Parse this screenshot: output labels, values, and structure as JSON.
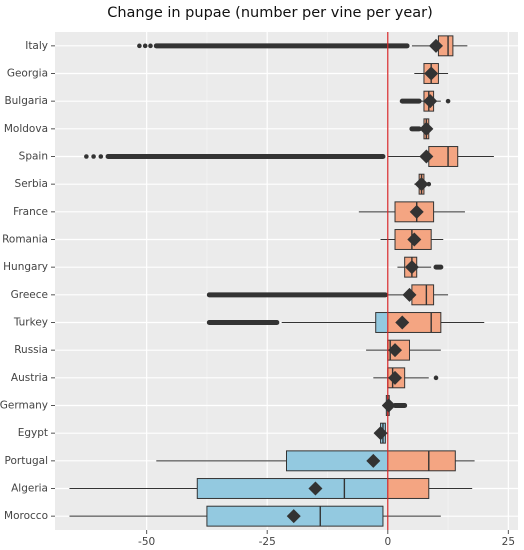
{
  "chart_data": {
    "type": "boxplot",
    "title": "Change in pupae (number per vine per year)",
    "categories": [
      "Italy",
      "Georgia",
      "Bulgaria",
      "Moldova",
      "Spain",
      "Serbia",
      "France",
      "Romania",
      "Hungary",
      "Greece",
      "Turkey",
      "Russia",
      "Austria",
      "Germany",
      "Egypt",
      "Portugal",
      "Algeria",
      "Morocco"
    ],
    "boxes": [
      {
        "whislo": 5,
        "q1": 10.5,
        "med": 12.5,
        "q3": 13.5,
        "whishi": 16.5,
        "mean": 10,
        "outlier_band": [
          -48,
          4
        ],
        "outliers": [
          -51.5,
          -50.3,
          -49.2
        ]
      },
      {
        "whislo": 5.5,
        "q1": 7.5,
        "med": 9,
        "q3": 10.5,
        "whishi": 12.5,
        "mean": 9
      },
      {
        "whislo": 6,
        "q1": 7.5,
        "med": 8.5,
        "q3": 9.5,
        "whishi": 11,
        "mean": 8.8,
        "outlier_band": [
          3,
          6.5
        ],
        "outliers": [
          12.5
        ]
      },
      {
        "whislo": 6.5,
        "q1": 7.5,
        "med": 8,
        "q3": 8.5,
        "whishi": 9,
        "mean": 8,
        "outlier_band": [
          5,
          6.5
        ]
      },
      {
        "whislo": 0,
        "q1": 8.5,
        "med": 12.5,
        "q3": 14.5,
        "whishi": 22,
        "mean": 8,
        "outlier_band": [
          -58,
          -1
        ],
        "outliers": [
          -62.5,
          -61,
          -59.5
        ]
      },
      {
        "whislo": 5.5,
        "q1": 6.5,
        "med": 7,
        "q3": 7.5,
        "whishi": 8,
        "mean": 7,
        "outliers": [
          8.5
        ]
      },
      {
        "whislo": -6,
        "q1": 1.5,
        "med": 6,
        "q3": 9.5,
        "whishi": 16,
        "mean": 6
      },
      {
        "whislo": -1.5,
        "q1": 1.5,
        "med": 5,
        "q3": 9,
        "whishi": 11.5,
        "mean": 5.5
      },
      {
        "whislo": 2,
        "q1": 3.5,
        "med": 5,
        "q3": 6,
        "whishi": 9,
        "mean": 5,
        "outlier_band": [
          10,
          11
        ]
      },
      {
        "whislo": 0,
        "q1": 5,
        "med": 8,
        "q3": 9.5,
        "whishi": 12.5,
        "mean": 4.5,
        "outlier_band": [
          -37,
          -0.5
        ]
      },
      {
        "whislo": -22,
        "q1": -2.5,
        "med": 9,
        "q3": 11,
        "whishi": 20,
        "mean": 3,
        "outlier_band": [
          -37,
          -23
        ]
      },
      {
        "whislo": -4.5,
        "q1": 0,
        "med": 0.5,
        "q3": 4.5,
        "whishi": 11,
        "mean": 1.5
      },
      {
        "whislo": -3,
        "q1": 0,
        "med": 1,
        "q3": 3.5,
        "whishi": 8.5,
        "mean": 1.5,
        "outliers": [
          10
        ]
      },
      {
        "whislo": -1,
        "q1": -0.3,
        "med": 0,
        "q3": 0.3,
        "whishi": 1,
        "mean": 0.2,
        "outlier_band": [
          1.5,
          3.5
        ]
      },
      {
        "whislo": -2.5,
        "q1": -1.5,
        "med": -1,
        "q3": -0.5,
        "whishi": 0,
        "mean": -1.5
      },
      {
        "whislo": -48,
        "q1": -21,
        "med": 8.5,
        "q3": 14,
        "whishi": 18,
        "mean": -3
      },
      {
        "whislo": -66,
        "q1": -39.5,
        "med": -9,
        "q3": 8.5,
        "whishi": 17.5,
        "mean": -15
      },
      {
        "whislo": -66,
        "q1": -37.5,
        "med": -14,
        "q3": -1,
        "whishi": 11,
        "mean": -19.5
      }
    ],
    "xlim": [
      -69,
      27
    ],
    "xticks": [
      -50,
      -25,
      0,
      25
    ],
    "grid": true,
    "negative_color": "#93c9e0",
    "positive_color": "#f4a582",
    "mean_color": "#333333",
    "reference_line": 0,
    "reference_color": "#d62728"
  }
}
